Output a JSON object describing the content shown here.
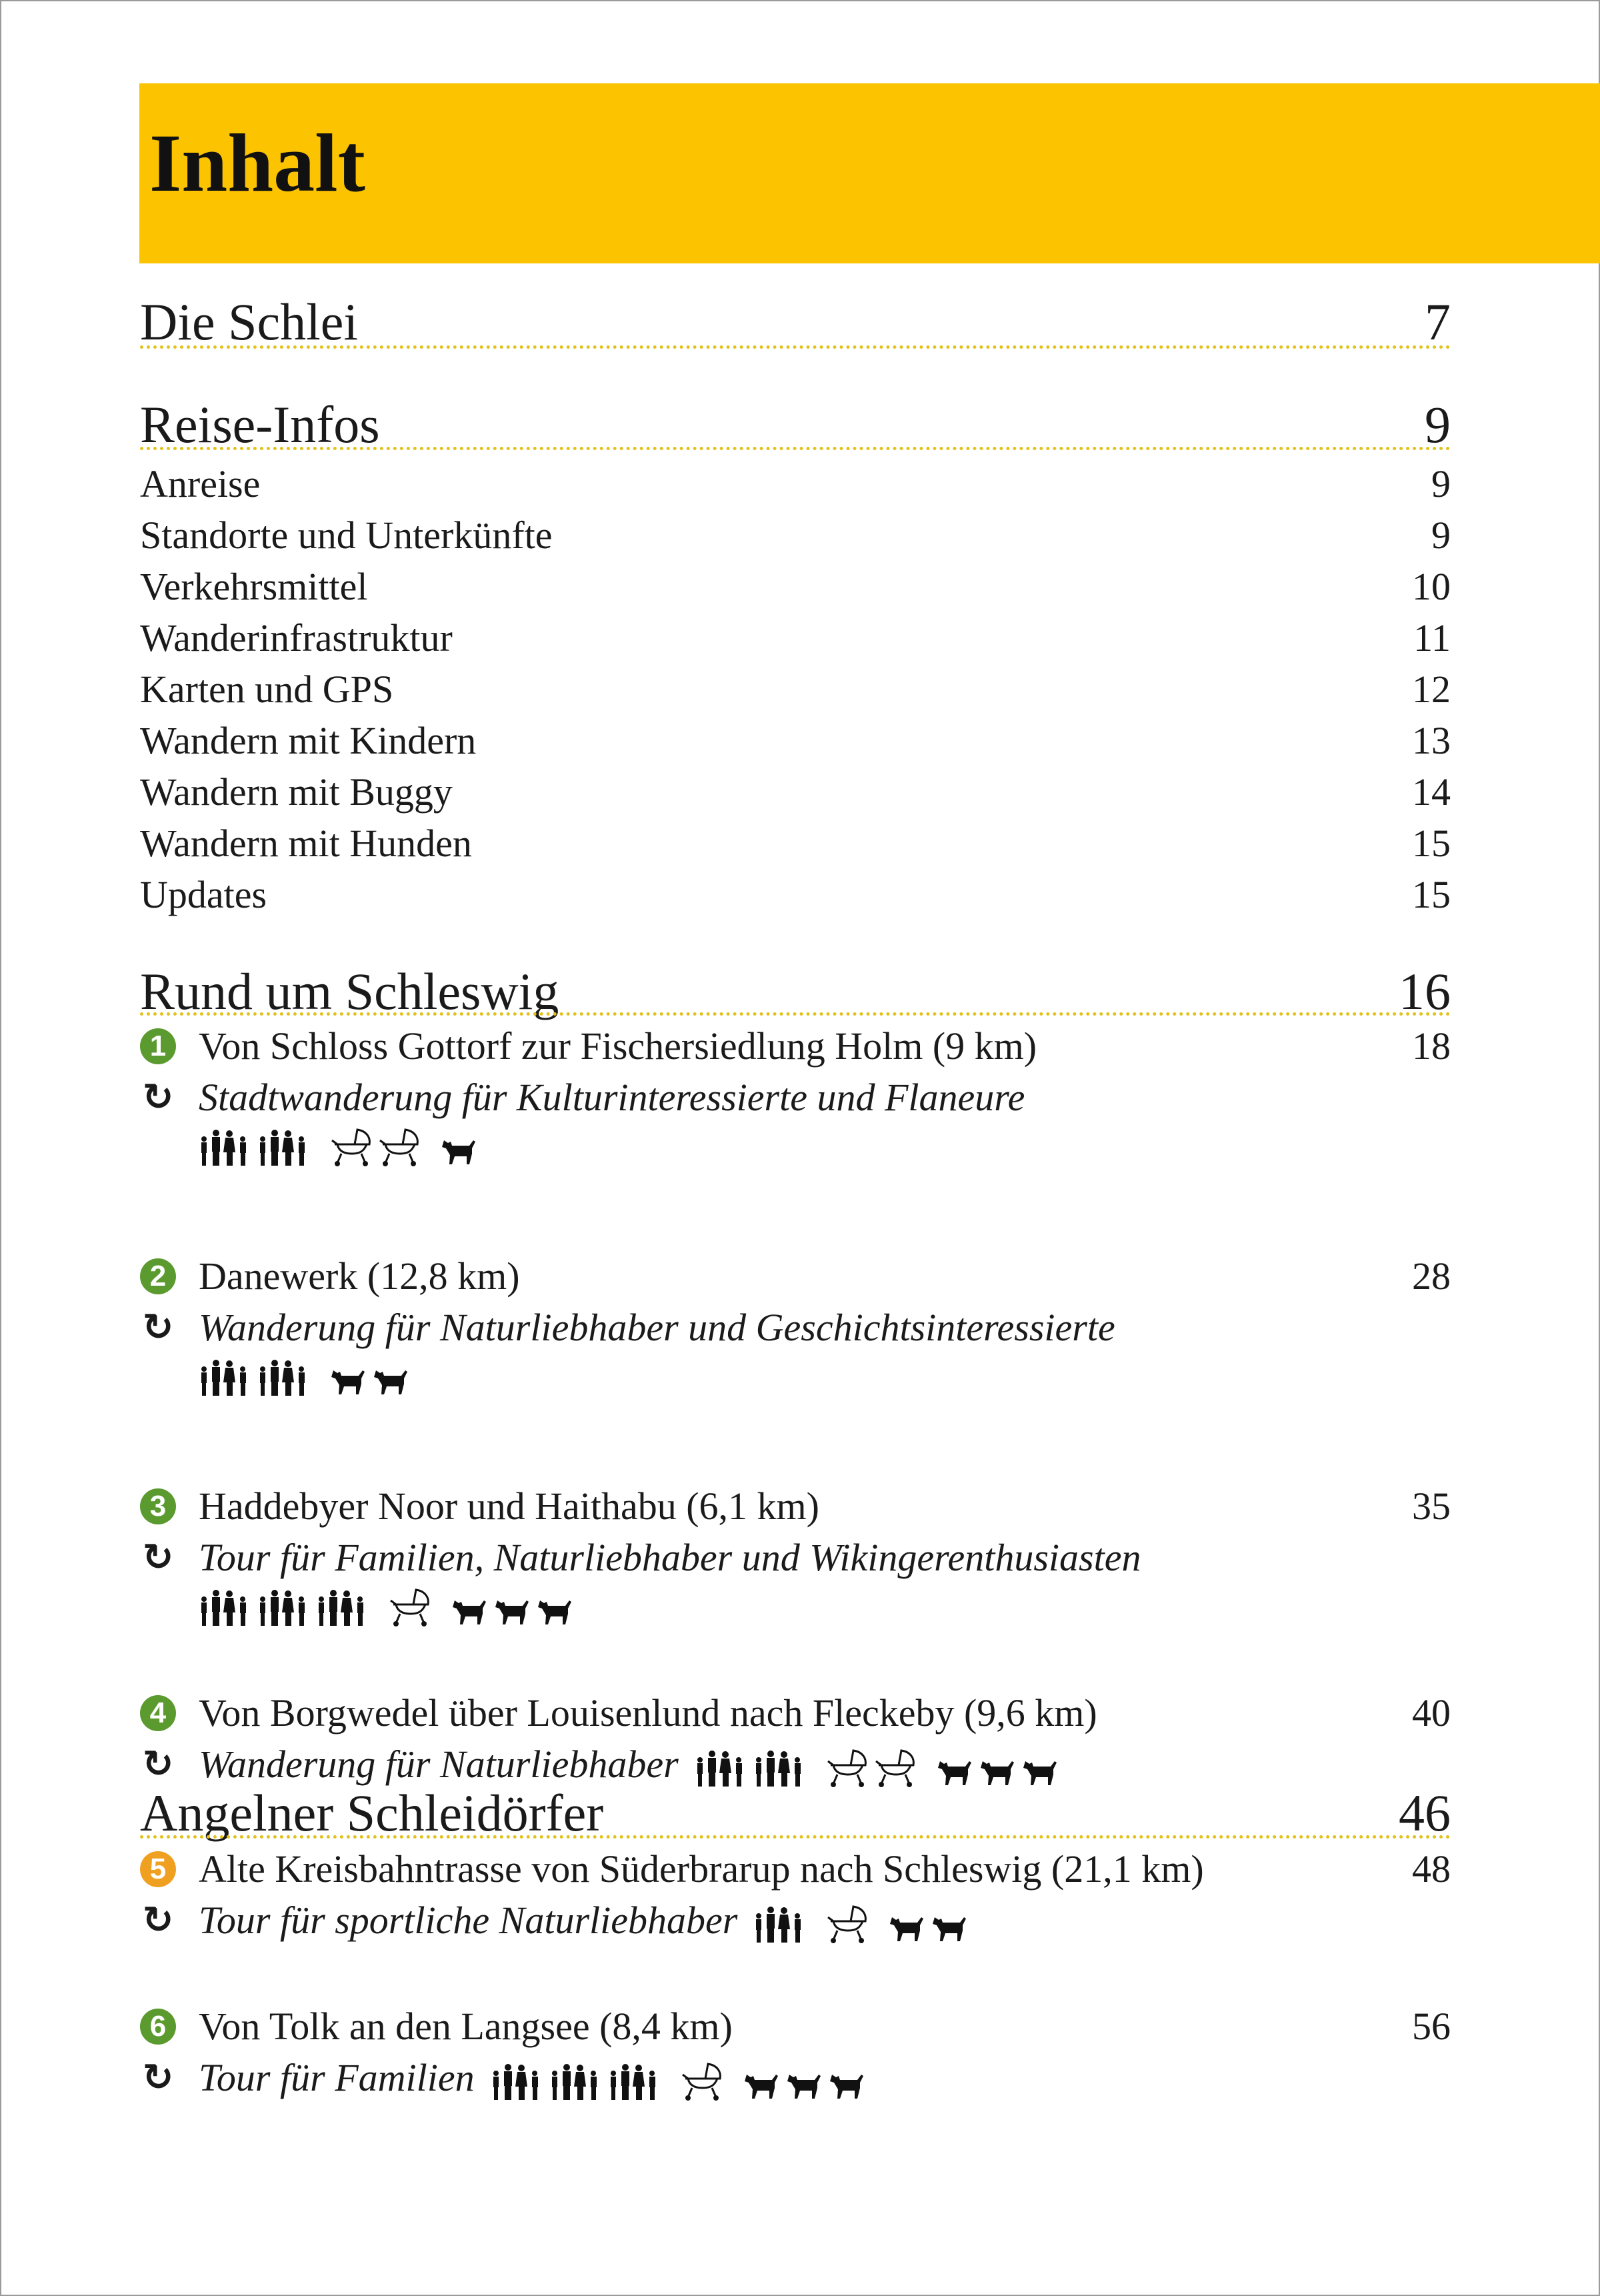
{
  "title": "Inhalt",
  "colors": {
    "accent": "#fcc400",
    "dots": "#e2c21a",
    "green": "#5a9a2e",
    "orange": "#f0a020"
  },
  "sections": [
    {
      "title": "Die Schlei",
      "page": "7",
      "items": [],
      "tours": []
    },
    {
      "title": "Reise-Infos",
      "page": "9",
      "items": [
        {
          "label": "Anreise",
          "page": "9"
        },
        {
          "label": "Standorte und Unterkünfte",
          "page": "9"
        },
        {
          "label": "Verkehrsmittel",
          "page": "10"
        },
        {
          "label": "Wanderinfrastruktur",
          "page": "11"
        },
        {
          "label": "Karten und GPS",
          "page": "12"
        },
        {
          "label": "Wandern mit Kindern",
          "page": "13"
        },
        {
          "label": "Wandern mit Buggy",
          "page": "14"
        },
        {
          "label": "Wandern mit Hunden",
          "page": "15"
        },
        {
          "label": "Updates",
          "page": "15"
        }
      ],
      "tours": []
    },
    {
      "title": "Rund um Schleswig",
      "page": "16",
      "items": [],
      "tours": [
        {
          "number": "1",
          "color": "#5a9a2e",
          "title": "Von Schloss Gottorf zur Fischersiedlung Holm (9 km)",
          "page": "18",
          "subtitle": "Stadtwanderung für Kulturinteressierte und Flaneure",
          "icon": "loop-arrow-icon",
          "ratings": {
            "family": 2,
            "buggy": 2,
            "dog": 1
          }
        },
        {
          "number": "2",
          "color": "#5a9a2e",
          "title": "Danewerk (12,8 km)",
          "page": "28",
          "subtitle": "Wanderung für Naturliebhaber und Geschichtsinteressierte",
          "icon": "loop-arrow-icon",
          "ratings": {
            "family": 2,
            "buggy": 0,
            "dog": 2
          }
        },
        {
          "number": "3",
          "color": "#5a9a2e",
          "title": "Haddebyer Noor und Haithabu (6,1 km)",
          "page": "35",
          "subtitle": "Tour für Familien, Naturliebhaber und Wikingerenthusiasten",
          "icon": "loop-arrow-icon",
          "ratings": {
            "family": 3,
            "buggy": 1,
            "dog": 3
          }
        },
        {
          "number": "4",
          "color": "#5a9a2e",
          "title": "Von Borgwedel über Louisenlund nach Fleckeby (9,6 km)",
          "page": "40",
          "subtitle": "Wanderung für Naturliebhaber",
          "icon": "loop-arrow-icon",
          "ratings": {
            "family": 2,
            "buggy": 2,
            "dog": 3
          }
        }
      ]
    },
    {
      "title": "Angelner Schleidörfer",
      "page": "46",
      "items": [],
      "tours": [
        {
          "number": "5",
          "color": "#f0a020",
          "title": "Alte Kreisbahntrasse von Süderbrarup nach Schleswig (21,1 km)",
          "page": "48",
          "subtitle": "Tour für sportliche Naturliebhaber",
          "icon": "loop-arrow-icon",
          "ratings": {
            "family": 1,
            "buggy": 1,
            "dog": 2
          }
        },
        {
          "number": "6",
          "color": "#5a9a2e",
          "title": "Von Tolk an den Langsee (8,4 km)",
          "page": "56",
          "subtitle": "Tour für Familien",
          "icon": "loop-arrow-icon",
          "ratings": {
            "family": 3,
            "buggy": 1,
            "dog": 3
          }
        }
      ]
    }
  ]
}
